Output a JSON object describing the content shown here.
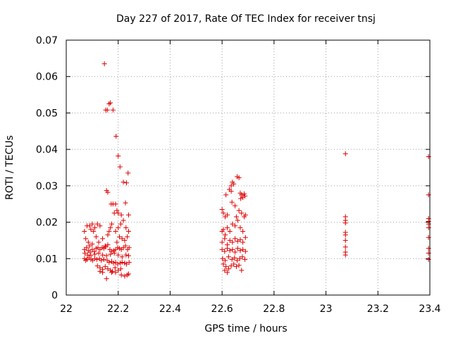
{
  "chart_data": {
    "type": "scatter",
    "title": "Day 227 of 2017, Rate Of TEC Index for receiver tnsj",
    "xlabel": "GPS time / hours",
    "ylabel": "ROTI / TECUs",
    "xlim": [
      22,
      23.4
    ],
    "ylim": [
      0,
      0.07
    ],
    "xticks": [
      22,
      22.2,
      22.4,
      22.6,
      22.8,
      23,
      23.2,
      23.4
    ],
    "xtick_labels": [
      "22",
      "22.2",
      "22.4",
      "22.6",
      "22.8",
      "23",
      "23.2",
      "23.4"
    ],
    "yticks": [
      0,
      0.01,
      0.02,
      0.03,
      0.04,
      0.05,
      0.06,
      0.07
    ],
    "ytick_labels": [
      "0",
      "0.01",
      "0.02",
      "0.03",
      "0.04",
      "0.05",
      "0.06",
      "0.07"
    ],
    "grid": true,
    "marker": "+",
    "color": "#e00000",
    "series": [
      {
        "name": "ROTI",
        "points": [
          [
            22.147,
            0.0635
          ],
          [
            22.152,
            0.0508
          ],
          [
            22.158,
            0.0508
          ],
          [
            22.165,
            0.0525
          ],
          [
            22.17,
            0.0528
          ],
          [
            22.18,
            0.0508
          ],
          [
            22.192,
            0.0436
          ],
          [
            22.2,
            0.0382
          ],
          [
            22.207,
            0.0352
          ],
          [
            22.22,
            0.031
          ],
          [
            22.232,
            0.0308
          ],
          [
            22.238,
            0.0335
          ],
          [
            22.155,
            0.0287
          ],
          [
            22.16,
            0.0282
          ],
          [
            22.173,
            0.025
          ],
          [
            22.18,
            0.025
          ],
          [
            22.19,
            0.025
          ],
          [
            22.228,
            0.0253
          ],
          [
            22.185,
            0.0225
          ],
          [
            22.195,
            0.0232
          ],
          [
            22.2,
            0.0225
          ],
          [
            22.212,
            0.022
          ],
          [
            22.24,
            0.022
          ],
          [
            22.07,
            0.0175
          ],
          [
            22.08,
            0.019
          ],
          [
            22.09,
            0.019
          ],
          [
            22.1,
            0.0195
          ],
          [
            22.11,
            0.0185
          ],
          [
            22.12,
            0.0195
          ],
          [
            22.13,
            0.019
          ],
          [
            22.095,
            0.018
          ],
          [
            22.105,
            0.0175
          ],
          [
            22.075,
            0.0155
          ],
          [
            22.085,
            0.0145
          ],
          [
            22.09,
            0.0135
          ],
          [
            22.1,
            0.014
          ],
          [
            22.115,
            0.016
          ],
          [
            22.125,
            0.0145
          ],
          [
            22.14,
            0.0155
          ],
          [
            22.15,
            0.0135
          ],
          [
            22.16,
            0.0165
          ],
          [
            22.17,
            0.0185
          ],
          [
            22.175,
            0.0195
          ],
          [
            22.165,
            0.0175
          ],
          [
            22.19,
            0.0175
          ],
          [
            22.2,
            0.0185
          ],
          [
            22.21,
            0.0195
          ],
          [
            22.22,
            0.0205
          ],
          [
            22.23,
            0.0185
          ],
          [
            22.24,
            0.0175
          ],
          [
            22.235,
            0.016
          ],
          [
            22.225,
            0.015
          ],
          [
            22.215,
            0.0155
          ],
          [
            22.205,
            0.016
          ],
          [
            22.195,
            0.0145
          ],
          [
            22.07,
            0.0125
          ],
          [
            22.078,
            0.013
          ],
          [
            22.085,
            0.0122
          ],
          [
            22.092,
            0.0118
          ],
          [
            22.1,
            0.0125
          ],
          [
            22.108,
            0.012
          ],
          [
            22.115,
            0.0128
          ],
          [
            22.122,
            0.013
          ],
          [
            22.13,
            0.0125
          ],
          [
            22.138,
            0.013
          ],
          [
            22.145,
            0.0128
          ],
          [
            22.152,
            0.0132
          ],
          [
            22.16,
            0.0138
          ],
          [
            22.168,
            0.0125
          ],
          [
            22.175,
            0.012
          ],
          [
            22.183,
            0.0122
          ],
          [
            22.19,
            0.0125
          ],
          [
            22.198,
            0.013
          ],
          [
            22.205,
            0.0128
          ],
          [
            22.212,
            0.0125
          ],
          [
            22.22,
            0.013
          ],
          [
            22.228,
            0.0135
          ],
          [
            22.236,
            0.0125
          ],
          [
            22.242,
            0.013
          ],
          [
            22.072,
            0.0115
          ],
          [
            22.082,
            0.011
          ],
          [
            22.095,
            0.0108
          ],
          [
            22.11,
            0.0112
          ],
          [
            22.125,
            0.0115
          ],
          [
            22.14,
            0.011
          ],
          [
            22.155,
            0.0108
          ],
          [
            22.17,
            0.0112
          ],
          [
            22.185,
            0.0115
          ],
          [
            22.2,
            0.011
          ],
          [
            22.215,
            0.0105
          ],
          [
            22.23,
            0.011
          ],
          [
            22.24,
            0.0108
          ],
          [
            22.07,
            0.01
          ],
          [
            22.075,
            0.0095
          ],
          [
            22.08,
            0.0098
          ],
          [
            22.088,
            0.0102
          ],
          [
            22.095,
            0.0098
          ],
          [
            22.102,
            0.0095
          ],
          [
            22.11,
            0.01
          ],
          [
            22.118,
            0.0098
          ],
          [
            22.128,
            0.01
          ],
          [
            22.135,
            0.0095
          ],
          [
            22.145,
            0.0098
          ],
          [
            22.158,
            0.0095
          ],
          [
            22.165,
            0.009
          ],
          [
            22.175,
            0.0092
          ],
          [
            22.182,
            0.0088
          ],
          [
            22.19,
            0.009
          ],
          [
            22.198,
            0.0085
          ],
          [
            22.208,
            0.0088
          ],
          [
            22.215,
            0.009
          ],
          [
            22.225,
            0.0088
          ],
          [
            22.232,
            0.0085
          ],
          [
            22.242,
            0.009
          ],
          [
            22.12,
            0.008
          ],
          [
            22.13,
            0.0075
          ],
          [
            22.14,
            0.007
          ],
          [
            22.15,
            0.0078
          ],
          [
            22.16,
            0.0072
          ],
          [
            22.17,
            0.0068
          ],
          [
            22.178,
            0.0065
          ],
          [
            22.188,
            0.0075
          ],
          [
            22.2,
            0.0068
          ],
          [
            22.21,
            0.0072
          ],
          [
            22.13,
            0.0065
          ],
          [
            22.14,
            0.0062
          ],
          [
            22.175,
            0.0062
          ],
          [
            22.212,
            0.0055
          ],
          [
            22.225,
            0.0052
          ],
          [
            22.235,
            0.0055
          ],
          [
            22.24,
            0.0058
          ],
          [
            22.155,
            0.0045
          ],
          [
            22.19,
            0.0062
          ],
          [
            22.6,
            0.0235
          ],
          [
            22.605,
            0.0225
          ],
          [
            22.612,
            0.0215
          ],
          [
            22.62,
            0.022
          ],
          [
            22.615,
            0.0275
          ],
          [
            22.628,
            0.029
          ],
          [
            22.635,
            0.03
          ],
          [
            22.64,
            0.031
          ],
          [
            22.645,
            0.0305
          ],
          [
            22.635,
            0.0285
          ],
          [
            22.638,
            0.0255
          ],
          [
            22.65,
            0.0245
          ],
          [
            22.658,
            0.0325
          ],
          [
            22.665,
            0.0322
          ],
          [
            22.67,
            0.028
          ],
          [
            22.675,
            0.0275
          ],
          [
            22.68,
            0.0268
          ],
          [
            22.685,
            0.0278
          ],
          [
            22.672,
            0.0265
          ],
          [
            22.688,
            0.0272
          ],
          [
            22.6,
            0.0175
          ],
          [
            22.605,
            0.018
          ],
          [
            22.612,
            0.0165
          ],
          [
            22.62,
            0.0185
          ],
          [
            22.63,
            0.0175
          ],
          [
            22.64,
            0.0195
          ],
          [
            22.65,
            0.019
          ],
          [
            22.66,
            0.0205
          ],
          [
            22.67,
            0.0185
          ],
          [
            22.68,
            0.0175
          ],
          [
            22.685,
            0.0215
          ],
          [
            22.69,
            0.022
          ],
          [
            22.675,
            0.0225
          ],
          [
            22.665,
            0.0232
          ],
          [
            22.655,
            0.0215
          ],
          [
            22.6,
            0.0145
          ],
          [
            22.61,
            0.0155
          ],
          [
            22.62,
            0.0138
          ],
          [
            22.63,
            0.015
          ],
          [
            22.64,
            0.0145
          ],
          [
            22.65,
            0.0155
          ],
          [
            22.66,
            0.0148
          ],
          [
            22.67,
            0.0152
          ],
          [
            22.68,
            0.0145
          ],
          [
            22.69,
            0.0158
          ],
          [
            22.6,
            0.0125
          ],
          [
            22.61,
            0.012
          ],
          [
            22.62,
            0.0128
          ],
          [
            22.63,
            0.0122
          ],
          [
            22.64,
            0.0125
          ],
          [
            22.65,
            0.0118
          ],
          [
            22.66,
            0.0128
          ],
          [
            22.67,
            0.0122
          ],
          [
            22.68,
            0.0125
          ],
          [
            22.69,
            0.012
          ],
          [
            22.602,
            0.01
          ],
          [
            22.612,
            0.0095
          ],
          [
            22.625,
            0.0105
          ],
          [
            22.638,
            0.0098
          ],
          [
            22.648,
            0.0102
          ],
          [
            22.658,
            0.0095
          ],
          [
            22.668,
            0.01
          ],
          [
            22.678,
            0.0105
          ],
          [
            22.688,
            0.0098
          ],
          [
            22.605,
            0.0085
          ],
          [
            22.615,
            0.0078
          ],
          [
            22.625,
            0.0072
          ],
          [
            22.635,
            0.008
          ],
          [
            22.645,
            0.0085
          ],
          [
            22.655,
            0.0078
          ],
          [
            22.665,
            0.0082
          ],
          [
            22.675,
            0.0068
          ],
          [
            22.61,
            0.0068
          ],
          [
            22.62,
            0.0062
          ],
          [
            23.075,
            0.0388
          ],
          [
            23.075,
            0.0215
          ],
          [
            23.075,
            0.0205
          ],
          [
            23.075,
            0.0198
          ],
          [
            23.075,
            0.0172
          ],
          [
            23.075,
            0.0165
          ],
          [
            23.075,
            0.015
          ],
          [
            23.075,
            0.0132
          ],
          [
            23.075,
            0.0118
          ],
          [
            23.075,
            0.011
          ],
          [
            23.395,
            0.038
          ],
          [
            23.395,
            0.0275
          ],
          [
            23.395,
            0.021
          ],
          [
            23.395,
            0.0202
          ],
          [
            23.395,
            0.0195
          ],
          [
            23.395,
            0.0185
          ],
          [
            23.395,
            0.0158
          ],
          [
            23.395,
            0.0128
          ],
          [
            23.395,
            0.0115
          ],
          [
            23.395,
            0.0098
          ]
        ]
      }
    ]
  }
}
